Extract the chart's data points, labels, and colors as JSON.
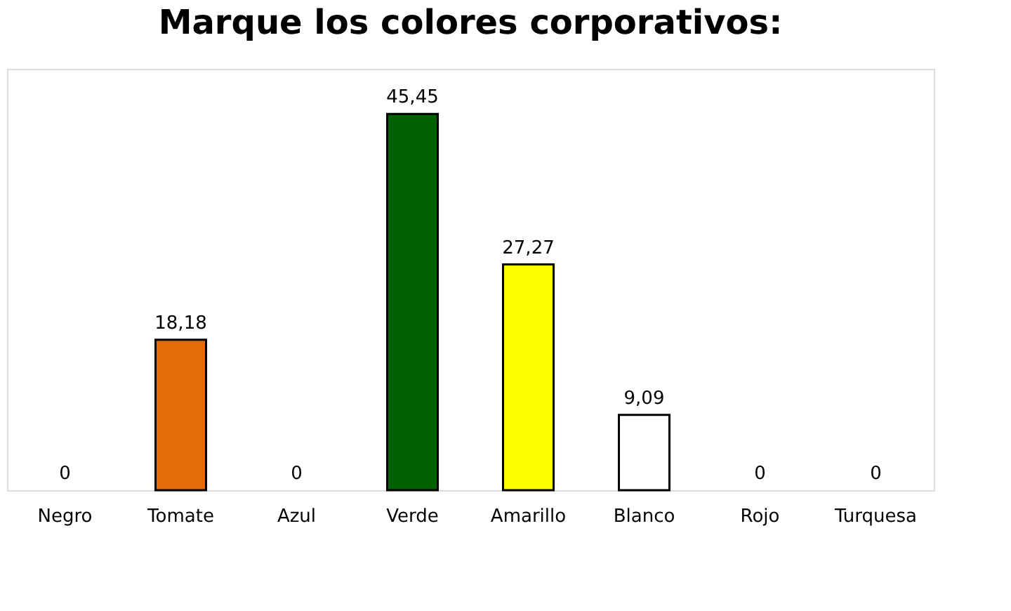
{
  "chart_data": {
    "type": "bar",
    "title": "Marque los colores corporativos:",
    "categories": [
      "Negro",
      "Tomate",
      "Azul",
      "Verde",
      "Amarillo",
      "Blanco",
      "Rojo",
      "Turquesa"
    ],
    "values": [
      0,
      18.18,
      0,
      45.45,
      27.27,
      9.09,
      0,
      0
    ],
    "colors": [
      null,
      "#e36c09",
      null,
      "#006100",
      "#ffff00",
      "#ffffff",
      null,
      null
    ],
    "value_labels": [
      "0",
      "18,18",
      "0",
      "45,45",
      "27,27",
      "9,09",
      "0",
      "0"
    ],
    "grid": false
  }
}
